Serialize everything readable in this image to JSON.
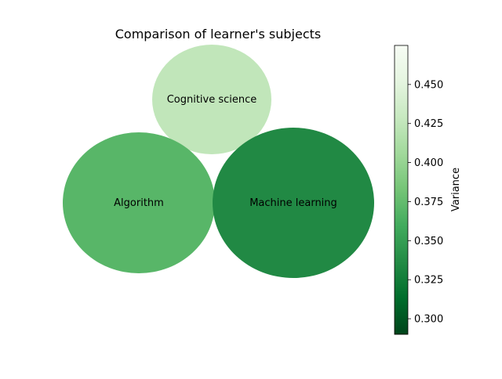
{
  "chart_data": {
    "type": "bubble",
    "title": "Comparison of learner's subjects",
    "bubbles": [
      {
        "label": "Cognitive science",
        "variance": 0.425
      },
      {
        "label": "Algorithm",
        "variance": 0.37
      },
      {
        "label": "Machine learning",
        "variance": 0.335
      }
    ],
    "colorbar": {
      "label": "Variance",
      "range": [
        0.29,
        0.475
      ],
      "ticks": [
        "0.300",
        "0.325",
        "0.350",
        "0.375",
        "0.400",
        "0.425",
        "0.450"
      ],
      "colormap": "Greens_r"
    }
  }
}
